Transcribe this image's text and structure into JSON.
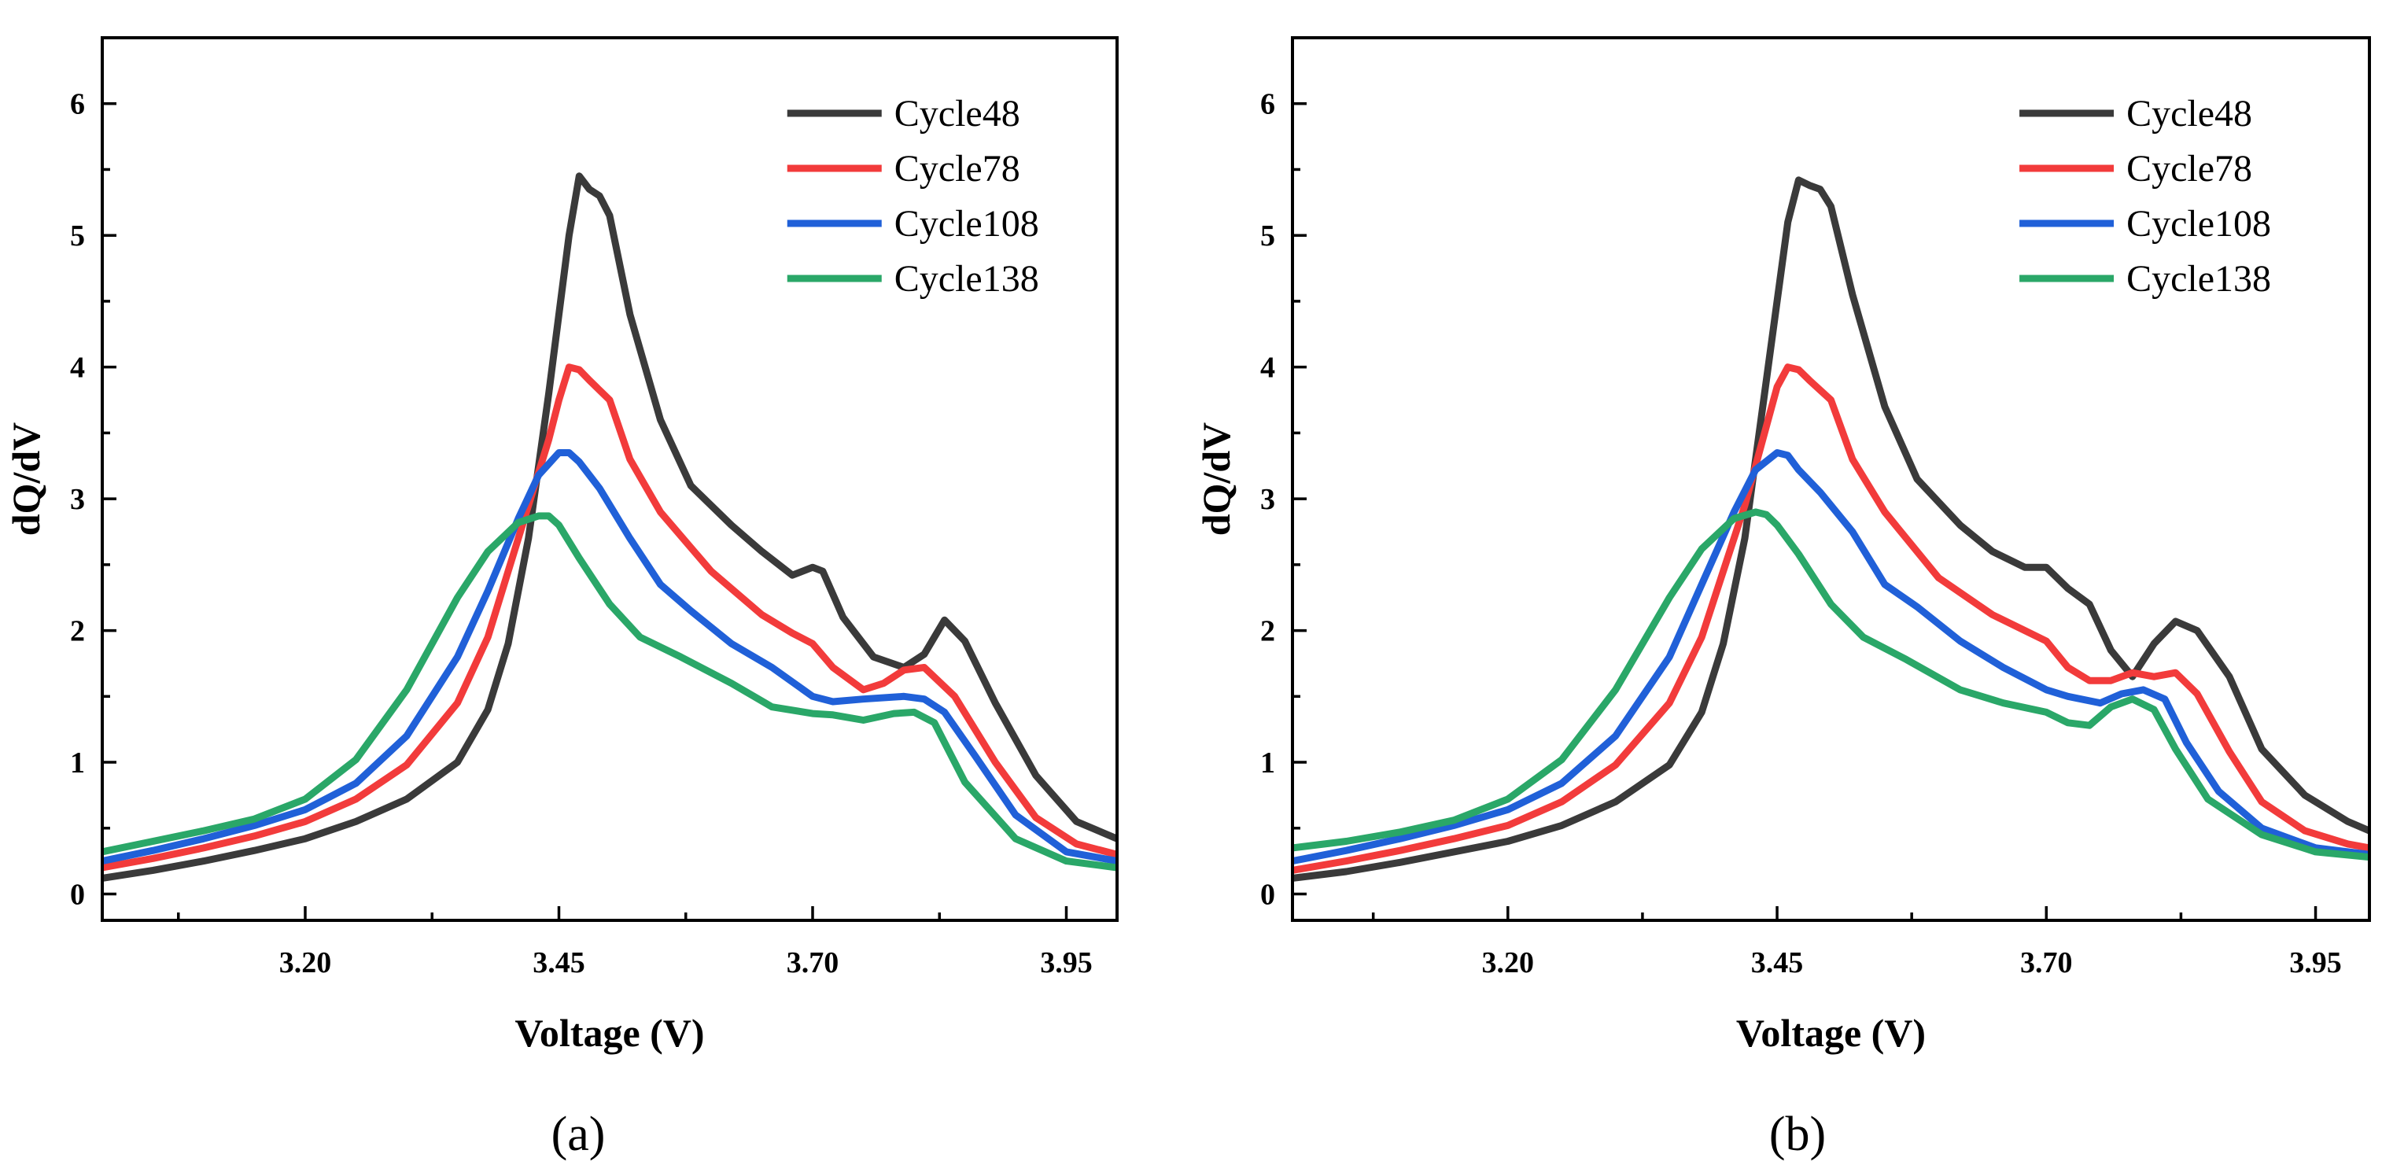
{
  "chart_data": [
    {
      "panel_label": "(a)",
      "type": "line",
      "title": "",
      "xlabel": "Voltage (V)",
      "ylabel": "dQ/dV",
      "xlim": [
        3.0,
        4.0
      ],
      "ylim": [
        -0.2,
        6.5
      ],
      "xticks": [
        "3.20",
        "3.45",
        "3.70",
        "3.95"
      ],
      "xtick_values": [
        3.2,
        3.45,
        3.7,
        3.95
      ],
      "yticks": [
        "0",
        "1",
        "2",
        "3",
        "4",
        "5",
        "6"
      ],
      "ytick_values": [
        0,
        1,
        2,
        3,
        4,
        5,
        6
      ],
      "legend_position": "top-right",
      "series": [
        {
          "name": "Cycle48",
          "color": "#3a3a3a",
          "x": [
            3.0,
            3.05,
            3.1,
            3.15,
            3.2,
            3.25,
            3.3,
            3.35,
            3.38,
            3.4,
            3.42,
            3.44,
            3.46,
            3.47,
            3.48,
            3.49,
            3.5,
            3.52,
            3.55,
            3.58,
            3.62,
            3.65,
            3.68,
            3.7,
            3.71,
            3.73,
            3.76,
            3.79,
            3.81,
            3.83,
            3.85,
            3.88,
            3.92,
            3.96,
            4.0
          ],
          "y": [
            0.12,
            0.18,
            0.25,
            0.33,
            0.42,
            0.55,
            0.72,
            1.0,
            1.4,
            1.9,
            2.7,
            3.8,
            5.0,
            5.45,
            5.35,
            5.3,
            5.15,
            4.4,
            3.6,
            3.1,
            2.8,
            2.6,
            2.42,
            2.48,
            2.45,
            2.1,
            1.8,
            1.72,
            1.82,
            2.08,
            1.92,
            1.45,
            0.9,
            0.55,
            0.42
          ]
        },
        {
          "name": "Cycle78",
          "color": "#f23b3b",
          "x": [
            3.0,
            3.05,
            3.1,
            3.15,
            3.2,
            3.25,
            3.3,
            3.35,
            3.38,
            3.4,
            3.42,
            3.44,
            3.45,
            3.46,
            3.47,
            3.48,
            3.5,
            3.52,
            3.55,
            3.6,
            3.65,
            3.68,
            3.7,
            3.72,
            3.75,
            3.77,
            3.79,
            3.81,
            3.84,
            3.88,
            3.92,
            3.96,
            4.0
          ],
          "y": [
            0.2,
            0.27,
            0.35,
            0.44,
            0.55,
            0.72,
            0.98,
            1.45,
            1.95,
            2.45,
            2.95,
            3.45,
            3.75,
            4.0,
            3.98,
            3.9,
            3.75,
            3.3,
            2.9,
            2.45,
            2.12,
            1.98,
            1.9,
            1.72,
            1.55,
            1.6,
            1.7,
            1.72,
            1.5,
            1.0,
            0.58,
            0.38,
            0.3
          ]
        },
        {
          "name": "Cycle108",
          "color": "#2060d8",
          "x": [
            3.0,
            3.05,
            3.1,
            3.15,
            3.2,
            3.25,
            3.3,
            3.35,
            3.38,
            3.41,
            3.43,
            3.45,
            3.46,
            3.47,
            3.49,
            3.52,
            3.55,
            3.58,
            3.62,
            3.66,
            3.7,
            3.72,
            3.75,
            3.79,
            3.81,
            3.83,
            3.86,
            3.9,
            3.95,
            4.0
          ],
          "y": [
            0.25,
            0.33,
            0.42,
            0.52,
            0.64,
            0.84,
            1.2,
            1.8,
            2.3,
            2.85,
            3.18,
            3.35,
            3.35,
            3.28,
            3.08,
            2.7,
            2.35,
            2.15,
            1.9,
            1.72,
            1.5,
            1.46,
            1.48,
            1.5,
            1.48,
            1.38,
            1.05,
            0.6,
            0.32,
            0.25
          ]
        },
        {
          "name": "Cycle138",
          "color": "#2aa768",
          "x": [
            3.0,
            3.05,
            3.1,
            3.15,
            3.2,
            3.25,
            3.3,
            3.35,
            3.38,
            3.41,
            3.43,
            3.44,
            3.45,
            3.47,
            3.5,
            3.53,
            3.57,
            3.62,
            3.66,
            3.7,
            3.72,
            3.75,
            3.78,
            3.8,
            3.82,
            3.85,
            3.9,
            3.95,
            4.0
          ],
          "y": [
            0.32,
            0.4,
            0.48,
            0.57,
            0.72,
            1.02,
            1.55,
            2.25,
            2.6,
            2.82,
            2.87,
            2.87,
            2.8,
            2.55,
            2.2,
            1.95,
            1.8,
            1.6,
            1.42,
            1.37,
            1.36,
            1.32,
            1.37,
            1.38,
            1.3,
            0.85,
            0.42,
            0.25,
            0.2
          ]
        }
      ]
    },
    {
      "panel_label": "(b)",
      "type": "line",
      "title": "",
      "xlabel": "Voltage (V)",
      "ylabel": "dQ/dV",
      "xlim": [
        3.0,
        4.0
      ],
      "ylim": [
        -0.2,
        6.5
      ],
      "xticks": [
        "3.20",
        "3.45",
        "3.70",
        "3.95"
      ],
      "xtick_values": [
        3.2,
        3.45,
        3.7,
        3.95
      ],
      "yticks": [
        "0",
        "1",
        "2",
        "3",
        "4",
        "5",
        "6"
      ],
      "ytick_values": [
        0,
        1,
        2,
        3,
        4,
        5,
        6
      ],
      "legend_position": "top-right",
      "series": [
        {
          "name": "Cycle48",
          "color": "#3a3a3a",
          "x": [
            3.0,
            3.05,
            3.1,
            3.15,
            3.2,
            3.25,
            3.3,
            3.35,
            3.38,
            3.4,
            3.42,
            3.44,
            3.46,
            3.47,
            3.48,
            3.49,
            3.5,
            3.52,
            3.55,
            3.58,
            3.62,
            3.65,
            3.68,
            3.7,
            3.72,
            3.74,
            3.76,
            3.78,
            3.8,
            3.82,
            3.84,
            3.87,
            3.9,
            3.94,
            3.98,
            4.0
          ],
          "y": [
            0.12,
            0.17,
            0.24,
            0.32,
            0.4,
            0.52,
            0.7,
            0.98,
            1.38,
            1.9,
            2.7,
            3.9,
            5.1,
            5.42,
            5.38,
            5.35,
            5.22,
            4.55,
            3.7,
            3.15,
            2.8,
            2.6,
            2.48,
            2.48,
            2.32,
            2.2,
            1.85,
            1.65,
            1.9,
            2.07,
            2.0,
            1.65,
            1.1,
            0.75,
            0.55,
            0.48
          ]
        },
        {
          "name": "Cycle78",
          "color": "#f23b3b",
          "x": [
            3.0,
            3.05,
            3.1,
            3.15,
            3.2,
            3.25,
            3.3,
            3.35,
            3.38,
            3.4,
            3.42,
            3.44,
            3.45,
            3.46,
            3.47,
            3.48,
            3.5,
            3.52,
            3.55,
            3.6,
            3.65,
            3.68,
            3.7,
            3.72,
            3.74,
            3.76,
            3.78,
            3.8,
            3.82,
            3.84,
            3.87,
            3.9,
            3.94,
            3.98,
            4.0
          ],
          "y": [
            0.18,
            0.25,
            0.33,
            0.42,
            0.52,
            0.7,
            0.98,
            1.45,
            1.95,
            2.45,
            2.95,
            3.55,
            3.85,
            4.0,
            3.98,
            3.9,
            3.75,
            3.3,
            2.9,
            2.4,
            2.12,
            2.0,
            1.92,
            1.72,
            1.62,
            1.62,
            1.68,
            1.65,
            1.68,
            1.52,
            1.08,
            0.7,
            0.48,
            0.38,
            0.35
          ]
        },
        {
          "name": "Cycle108",
          "color": "#2060d8",
          "x": [
            3.0,
            3.05,
            3.1,
            3.15,
            3.2,
            3.25,
            3.3,
            3.35,
            3.38,
            3.41,
            3.43,
            3.45,
            3.46,
            3.47,
            3.49,
            3.52,
            3.55,
            3.58,
            3.62,
            3.66,
            3.7,
            3.72,
            3.75,
            3.77,
            3.79,
            3.81,
            3.83,
            3.86,
            3.9,
            3.95,
            4.0
          ],
          "y": [
            0.25,
            0.33,
            0.42,
            0.52,
            0.64,
            0.84,
            1.2,
            1.8,
            2.35,
            2.9,
            3.22,
            3.35,
            3.33,
            3.22,
            3.05,
            2.75,
            2.35,
            2.18,
            1.92,
            1.72,
            1.55,
            1.5,
            1.45,
            1.52,
            1.55,
            1.48,
            1.15,
            0.78,
            0.5,
            0.35,
            0.3
          ]
        },
        {
          "name": "Cycle138",
          "color": "#2aa768",
          "x": [
            3.0,
            3.05,
            3.1,
            3.15,
            3.2,
            3.25,
            3.3,
            3.35,
            3.38,
            3.41,
            3.43,
            3.44,
            3.45,
            3.47,
            3.5,
            3.53,
            3.57,
            3.62,
            3.66,
            3.7,
            3.72,
            3.74,
            3.76,
            3.78,
            3.8,
            3.82,
            3.85,
            3.9,
            3.95,
            4.0
          ],
          "y": [
            0.35,
            0.4,
            0.47,
            0.56,
            0.72,
            1.02,
            1.55,
            2.25,
            2.62,
            2.85,
            2.9,
            2.88,
            2.8,
            2.58,
            2.2,
            1.95,
            1.78,
            1.55,
            1.45,
            1.38,
            1.3,
            1.28,
            1.42,
            1.48,
            1.4,
            1.1,
            0.72,
            0.45,
            0.32,
            0.28
          ]
        }
      ]
    }
  ]
}
